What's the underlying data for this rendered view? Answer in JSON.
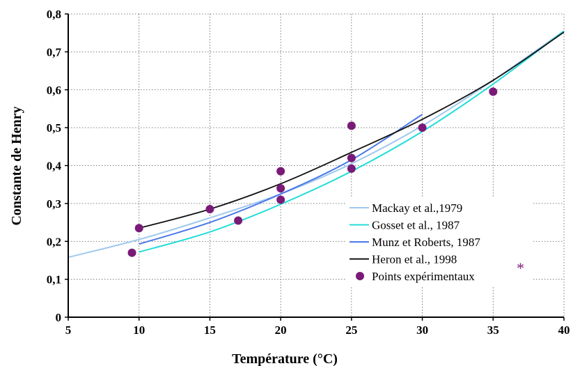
{
  "chart_data": {
    "type": "line",
    "xlabel": "Température (°C)",
    "ylabel": "Constante de Henry",
    "xlim": [
      5,
      40
    ],
    "ylim": [
      0,
      0.8
    ],
    "x_ticks": [
      5,
      10,
      15,
      20,
      25,
      30,
      35,
      40
    ],
    "y_ticks": [
      0,
      0.1,
      0.2,
      0.3,
      0.4,
      0.5,
      0.6,
      0.7,
      0.8
    ],
    "x_tick_labels": [
      "5",
      "10",
      "15",
      "20",
      "25",
      "30",
      "35",
      "40"
    ],
    "y_tick_labels": [
      "0",
      "0,1",
      "0,2",
      "0,3",
      "0,4",
      "0,5",
      "0,6",
      "0,7",
      "0,8"
    ],
    "grid": true,
    "legend_position": "bottom-right",
    "series": [
      {
        "name": "Mackay et al.,1979",
        "kind": "line",
        "color": "#9fc8ee",
        "x": [
          5,
          10,
          15,
          20,
          25,
          30,
          35,
          40
        ],
        "y": [
          0.158,
          0.205,
          0.262,
          0.325,
          0.405,
          0.505,
          0.625,
          0.755
        ]
      },
      {
        "name": "Gosset et al., 1987",
        "kind": "line",
        "color": "#22dcd8",
        "x": [
          10,
          15,
          20,
          25,
          30,
          35,
          40
        ],
        "y": [
          0.172,
          0.225,
          0.298,
          0.385,
          0.49,
          0.615,
          0.755
        ]
      },
      {
        "name": "Munz et Roberts, 1987",
        "kind": "line",
        "color": "#4a78e8",
        "x": [
          10,
          15,
          20,
          25,
          30
        ],
        "y": [
          0.193,
          0.25,
          0.325,
          0.415,
          0.535
        ]
      },
      {
        "name": "Heron et al., 1998",
        "kind": "line",
        "color": "#111111",
        "x": [
          10,
          15,
          20,
          25,
          30,
          35,
          40
        ],
        "y": [
          0.235,
          0.285,
          0.352,
          0.435,
          0.522,
          0.625,
          0.752
        ]
      },
      {
        "name": "Points expérimentaux",
        "kind": "scatter",
        "color": "#7a1a78",
        "x": [
          9.5,
          10,
          15,
          17,
          20,
          20,
          20,
          25,
          25,
          25,
          30,
          35
        ],
        "y": [
          0.17,
          0.235,
          0.285,
          0.255,
          0.385,
          0.34,
          0.31,
          0.505,
          0.42,
          0.392,
          0.5,
          0.595
        ]
      }
    ],
    "annotation": "*"
  }
}
